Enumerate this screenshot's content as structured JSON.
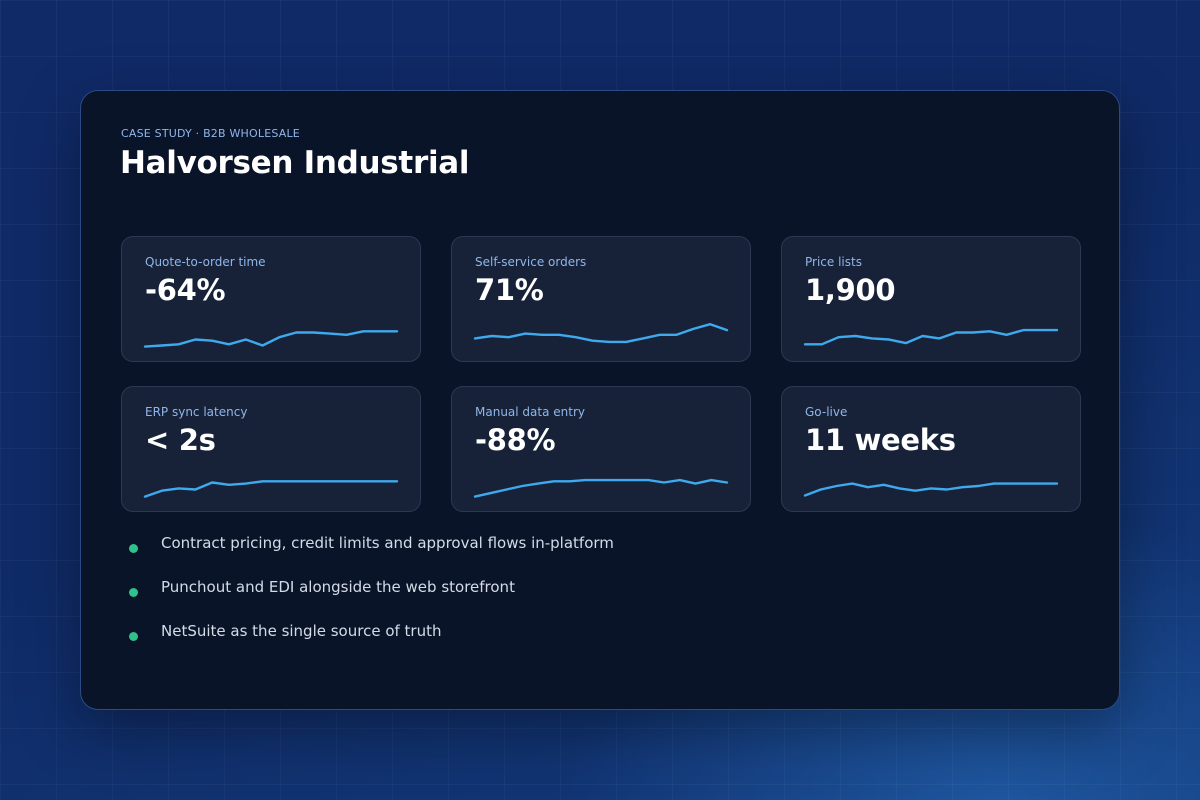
{
  "eyebrow": "CASE STUDY · B2B WHOLESALE",
  "title": "Halvorsen Industrial",
  "colors": {
    "accent_line": "#3fa9ee",
    "bullet": "#2fc28a",
    "label": "#8fb6ea"
  },
  "metrics": [
    {
      "label": "Quote-to-order time",
      "value": "-64%",
      "trend": [
        2,
        3,
        4,
        8,
        7,
        4,
        8,
        3,
        10,
        14,
        14,
        13,
        12,
        15,
        15,
        15
      ]
    },
    {
      "label": "Self-service orders",
      "value": "71%",
      "trend": [
        9,
        11,
        10,
        13,
        12,
        12,
        10,
        7,
        6,
        6,
        9,
        12,
        12,
        17,
        21,
        16
      ]
    },
    {
      "label": "Price lists",
      "value": "1,900",
      "trend": [
        4,
        4,
        10,
        11,
        9,
        8,
        5,
        11,
        9,
        14,
        14,
        15,
        12,
        16,
        16,
        16
      ]
    },
    {
      "label": "ERP sync latency",
      "value": "< 2s",
      "trend": [
        2,
        7,
        9,
        8,
        14,
        12,
        13,
        15,
        15,
        15,
        15,
        15,
        15,
        15,
        15,
        15
      ]
    },
    {
      "label": "Manual data entry",
      "value": "-88%",
      "trend": [
        2,
        5,
        8,
        11,
        13,
        15,
        15,
        16,
        16,
        16,
        16,
        16,
        14,
        16,
        13,
        16,
        14
      ]
    },
    {
      "label": "Go-live",
      "value": "11 weeks",
      "trend": [
        3,
        8,
        11,
        13,
        10,
        12,
        9,
        7,
        9,
        8,
        10,
        11,
        13,
        13,
        13,
        13,
        13
      ]
    }
  ],
  "bullets": [
    "Contract pricing, credit limits and approval flows in-platform",
    "Punchout and EDI alongside the web storefront",
    "NetSuite as the single source of truth"
  ]
}
